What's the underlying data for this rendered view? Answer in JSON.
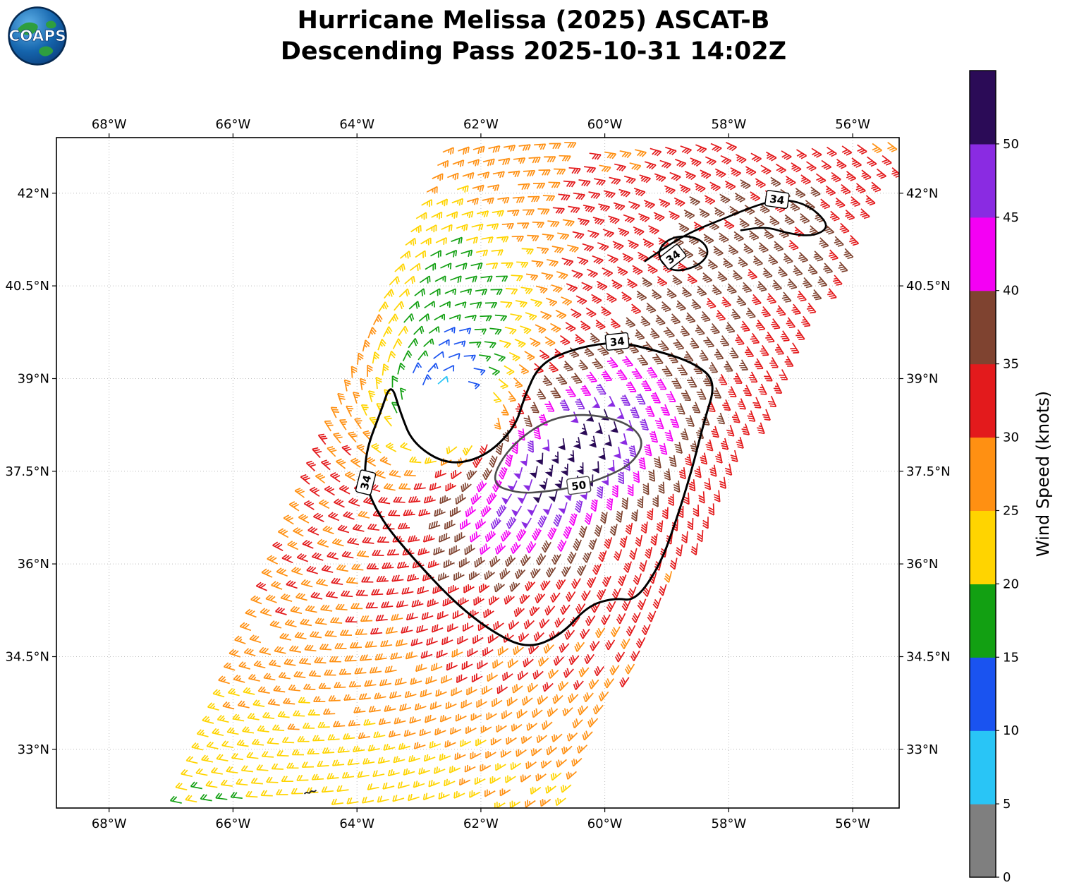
{
  "header": {
    "logo_text": "COAPS"
  },
  "chart_data": {
    "type": "wind_barb_map",
    "title": "Hurricane Melissa (2025) ASCAT-B",
    "subtitle": "Descending Pass 2025-10-31 14:02Z",
    "storm_name": "Hurricane Melissa",
    "storm_year": "2025",
    "instrument": "ASCAT-B",
    "pass_type": "Descending",
    "valid_time_utc": "2025-10-31 14:02Z",
    "map": {
      "lon_min": -68.85,
      "lon_max": -55.25,
      "lat_min": 32.05,
      "lat_max": 42.9,
      "x_ticks": [
        {
          "lon": -68,
          "label": "68°W"
        },
        {
          "lon": -66,
          "label": "66°W"
        },
        {
          "lon": -64,
          "label": "64°W"
        },
        {
          "lon": -62,
          "label": "62°W"
        },
        {
          "lon": -60,
          "label": "60°W"
        },
        {
          "lon": -58,
          "label": "58°W"
        },
        {
          "lon": -56,
          "label": "56°W"
        }
      ],
      "y_ticks": [
        {
          "lat": 33,
          "label": "33°N"
        },
        {
          "lat": 34.5,
          "label": "34.5°N"
        },
        {
          "lat": 36,
          "label": "36°N"
        },
        {
          "lat": 37.5,
          "label": "37.5°N"
        },
        {
          "lat": 39,
          "label": "39°N"
        },
        {
          "lat": 40.5,
          "label": "40.5°N"
        },
        {
          "lat": 42,
          "label": "42°N"
        }
      ],
      "grid": true
    },
    "colorbar": {
      "label": "Wind Speed (knots)",
      "tick_values": [
        0,
        5,
        10,
        15,
        20,
        25,
        30,
        35,
        40,
        45,
        50
      ],
      "bins": [
        {
          "range": [
            0,
            5
          ],
          "color": "#7f7f7f"
        },
        {
          "range": [
            5,
            10
          ],
          "color": "#29c5f6"
        },
        {
          "range": [
            10,
            15
          ],
          "color": "#1a53f0"
        },
        {
          "range": [
            15,
            20
          ],
          "color": "#12a012"
        },
        {
          "range": [
            20,
            25
          ],
          "color": "#ffd400"
        },
        {
          "range": [
            25,
            30
          ],
          "color": "#ff9012"
        },
        {
          "range": [
            30,
            35
          ],
          "color": "#e31a1c"
        },
        {
          "range": [
            35,
            40
          ],
          "color": "#7f4330"
        },
        {
          "range": [
            40,
            45
          ],
          "color": "#f400f4"
        },
        {
          "range": [
            45,
            50
          ],
          "color": "#8a2be2"
        },
        {
          "range": [
            50,
            55
          ],
          "color": "#2b0b57"
        }
      ]
    },
    "barb_convention": {
      "half_barb_kt": 5,
      "full_barb_kt": 10,
      "flag_kt": 50
    },
    "wind_model": {
      "base_kt": 30.5,
      "circulation_center": {
        "lon": -62.55,
        "lat": 38.5
      },
      "speed_max_center": {
        "lon": -60.65,
        "lat": 37.75
      },
      "core_amplitude_kt": 24,
      "core_sigma_major_deg": 1.55,
      "core_sigma_minor_deg": 0.85,
      "core_axis_deg": 40,
      "calm_dip_kt": 19,
      "calm_sigma_deg": 0.78,
      "inflow_deg": 22,
      "south_ramp": {
        "lat_start": 34.3,
        "kt_per_deg": 2.6,
        "max_kt": 6
      },
      "top_ramp": {
        "lat_start": 41.9,
        "kt_per_deg": 3,
        "max_kt": 4.5
      },
      "sw_corner_dip": {
        "lon": -66.0,
        "lat": 32.3,
        "amp": 5,
        "sx": 2.6,
        "sy": 2.0
      },
      "north_patch_dip": {
        "lon": -62.4,
        "lat": 40.45,
        "amp": 13.5,
        "sx": 0.95,
        "sy": 1.05
      },
      "ne_boost": {
        "lon": -57.4,
        "lat": 41.5,
        "amp": 5.5,
        "sx": 2.0,
        "sy": 1.4
      },
      "noise_kt": 1.3
    },
    "swath": {
      "ref_lat": 32.2,
      "lat_start": 31.7,
      "lat_end": 42.88,
      "row_step_deg": 0.215,
      "col_step_deg": 0.245,
      "row_tilt": 0.08,
      "left_edge": {
        "lon_at_ref": -66.8,
        "dlon_dlat": 0.4
      },
      "right_edge": {
        "lon_at_ref": -60.35,
        "dlon_dlat": 0.52
      },
      "gap": {
        "lon": -62.6,
        "lat": 38.38,
        "rx": 0.82,
        "ry": 0.5,
        "rot_deg": 20
      },
      "dropout_frac": 0.02
    },
    "contours": [
      {
        "level": 34,
        "color": "#000000",
        "width": 3,
        "closed": true,
        "points": [
          [
            -63.45,
            38.95
          ],
          [
            -63.62,
            38.45
          ],
          [
            -63.85,
            37.85
          ],
          [
            -63.88,
            37.3
          ],
          [
            -63.6,
            36.7
          ],
          [
            -63.1,
            36.1
          ],
          [
            -62.45,
            35.4
          ],
          [
            -61.85,
            34.92
          ],
          [
            -61.25,
            34.62
          ],
          [
            -60.7,
            34.85
          ],
          [
            -60.28,
            35.32
          ],
          [
            -59.85,
            35.45
          ],
          [
            -59.5,
            35.4
          ],
          [
            -59.1,
            36.0
          ],
          [
            -58.85,
            36.7
          ],
          [
            -58.6,
            37.5
          ],
          [
            -58.4,
            38.3
          ],
          [
            -58.2,
            38.95
          ],
          [
            -58.55,
            39.25
          ],
          [
            -59.15,
            39.45
          ],
          [
            -59.8,
            39.6
          ],
          [
            -60.45,
            39.5
          ],
          [
            -61.05,
            39.25
          ],
          [
            -61.3,
            38.7
          ],
          [
            -61.45,
            38.2
          ],
          [
            -61.95,
            37.72
          ],
          [
            -62.55,
            37.6
          ],
          [
            -63.1,
            37.95
          ],
          [
            -63.3,
            38.45
          ]
        ],
        "labels": [
          {
            "text": "34",
            "lon": -63.86,
            "lat": 37.32,
            "rot": -76
          },
          {
            "text": "34",
            "lon": -59.8,
            "lat": 39.6,
            "rot": -6
          }
        ]
      },
      {
        "level": 50,
        "color": "#4d4d4d",
        "width": 2.6,
        "closed": true,
        "points": [
          [
            -61.85,
            37.3
          ],
          [
            -61.4,
            37.14
          ],
          [
            -60.95,
            37.17
          ],
          [
            -60.45,
            37.25
          ],
          [
            -59.95,
            37.42
          ],
          [
            -59.55,
            37.63
          ],
          [
            -59.36,
            37.97
          ],
          [
            -59.58,
            38.25
          ],
          [
            -60.05,
            38.4
          ],
          [
            -60.6,
            38.42
          ],
          [
            -61.1,
            38.24
          ],
          [
            -61.6,
            37.82
          ]
        ],
        "labels": [
          {
            "text": "50",
            "lon": -60.42,
            "lat": 37.27,
            "rot": -8
          }
        ]
      },
      {
        "level": 34,
        "color": "#000000",
        "width": 2.6,
        "closed": true,
        "points": [
          [
            -58.85,
            40.72
          ],
          [
            -58.45,
            40.84
          ],
          [
            -58.3,
            41.08
          ],
          [
            -58.52,
            41.3
          ],
          [
            -58.92,
            41.3
          ],
          [
            -59.15,
            41.08
          ],
          [
            -59.08,
            40.86
          ]
        ],
        "labels": [
          {
            "text": "34",
            "lon": -58.9,
            "lat": 40.97,
            "rot": -38
          }
        ]
      },
      {
        "level": 34,
        "color": "#000000",
        "width": 2.6,
        "closed": false,
        "points": [
          [
            -59.35,
            40.9
          ],
          [
            -58.95,
            41.18
          ],
          [
            -58.55,
            41.4
          ],
          [
            -58.1,
            41.58
          ],
          [
            -57.65,
            41.77
          ],
          [
            -57.22,
            41.9
          ],
          [
            -56.85,
            41.86
          ],
          [
            -56.55,
            41.68
          ],
          [
            -56.38,
            41.44
          ],
          [
            -56.65,
            41.3
          ],
          [
            -57.05,
            41.35
          ],
          [
            -57.4,
            41.46
          ],
          [
            -57.8,
            41.4
          ]
        ],
        "labels": [
          {
            "text": "34",
            "lon": -57.22,
            "lat": 41.9,
            "rot": 8
          }
        ]
      }
    ],
    "coast_mark": {
      "lon": -64.85,
      "lat": 32.28
    }
  }
}
